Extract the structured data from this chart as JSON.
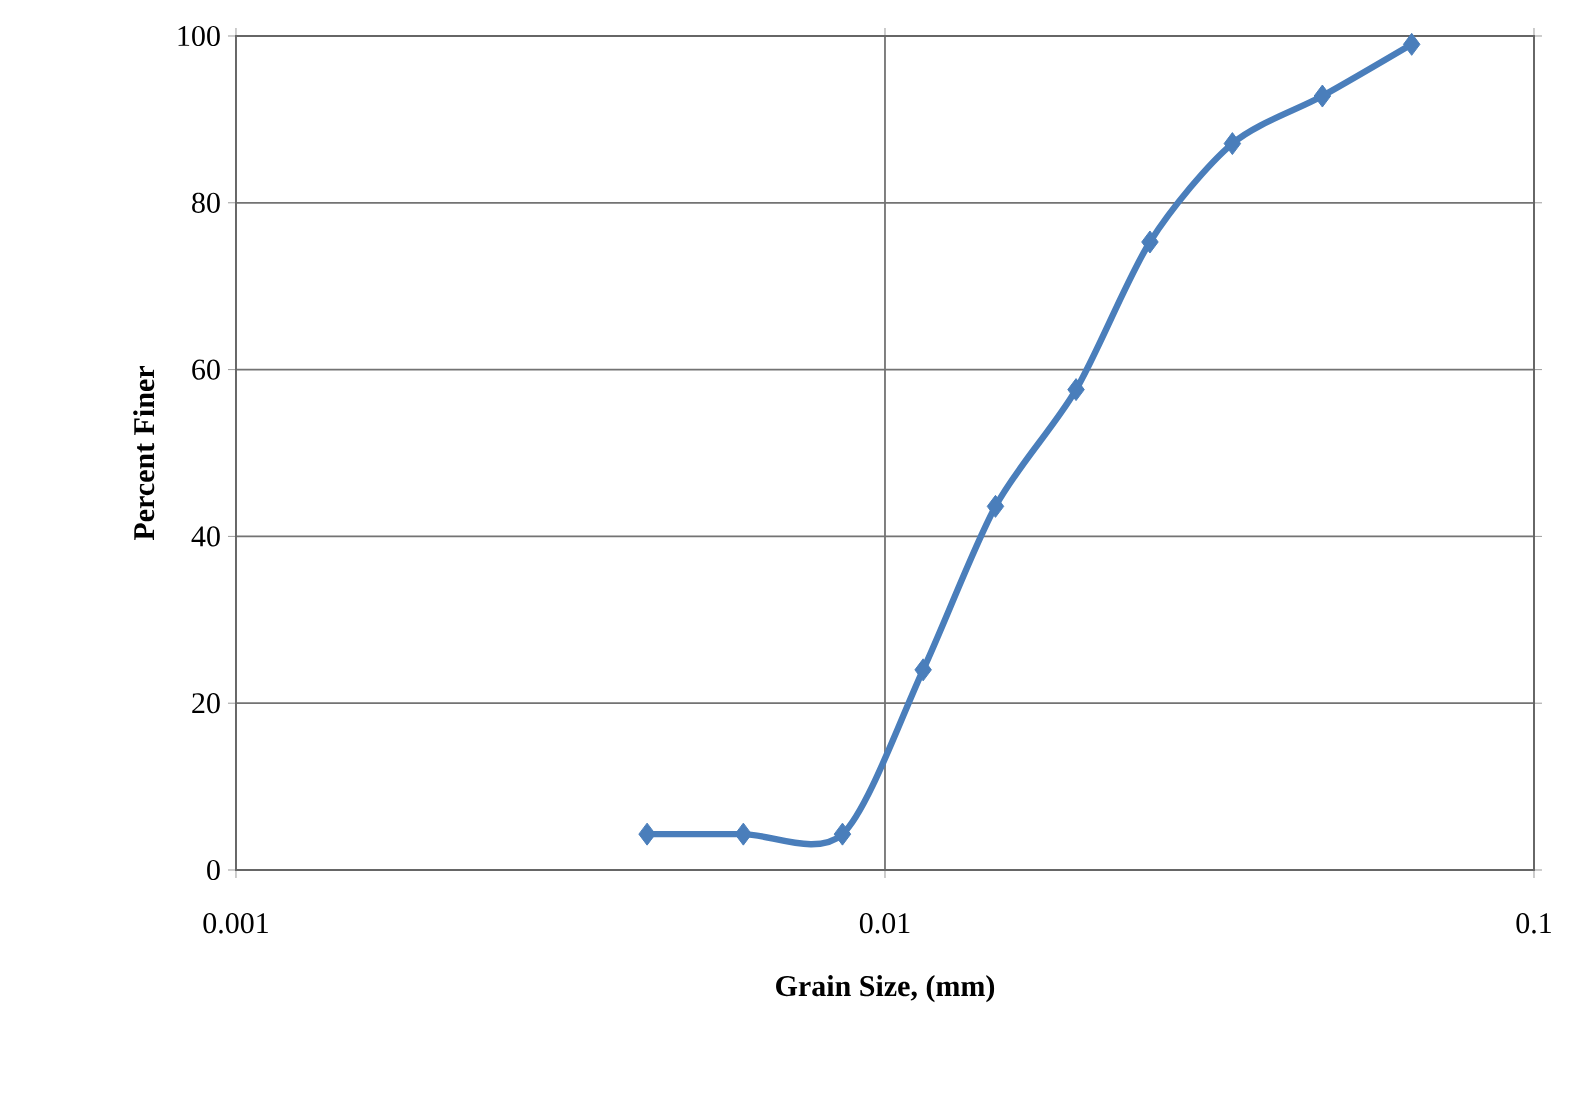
{
  "chart_data": {
    "type": "line",
    "xlabel": "Grain Size, (mm)",
    "ylabel": "Percent Finer",
    "log": "x",
    "grid": true,
    "marker": "diamond",
    "line_style": "solid",
    "xlim": [
      0.001,
      0.1
    ],
    "xticks": [
      0.001,
      0.01,
      0.1
    ],
    "ylim": [
      0,
      100
    ],
    "yticks": [
      0,
      20,
      40,
      60,
      80,
      100
    ],
    "series": [
      {
        "color": "#4a7ebb",
        "x": [
          0.0043,
          0.00605,
          0.0086,
          0.01145,
          0.0148,
          0.0197,
          0.0256,
          0.0343,
          0.0472,
          0.0648
        ],
        "values": [
          4.3,
          4.3,
          4.3,
          24,
          43.6,
          57.6,
          75.3,
          87.1,
          92.8,
          99
        ]
      }
    ]
  }
}
